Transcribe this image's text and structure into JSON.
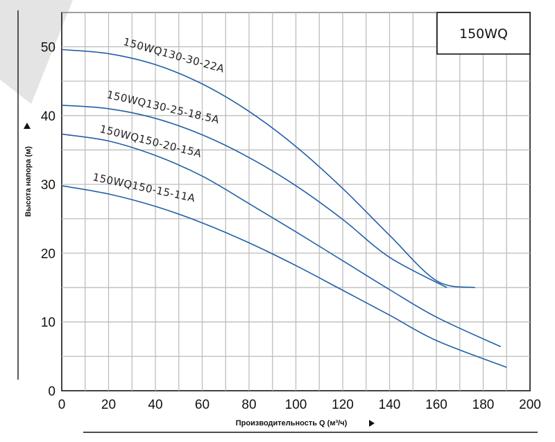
{
  "chart_data": {
    "type": "line",
    "title": "150WQ",
    "xlabel": "Производительность Q (м³/ч)",
    "ylabel": "Высота напора (м)",
    "xlim": [
      0,
      200
    ],
    "ylim": [
      0,
      55
    ],
    "xticks": [
      "0",
      "20",
      "40",
      "60",
      "80",
      "100",
      "120",
      "140",
      "160",
      "180",
      "200"
    ],
    "yticks": [
      "0",
      "10",
      "20",
      "30",
      "40",
      "50"
    ],
    "grid": true,
    "line_color": "#1f5fa8",
    "series": [
      {
        "name": "150WQ130-30-22A",
        "label_at": [
          26,
          50.3
        ],
        "label_angle": 15.5,
        "points": [
          [
            0,
            49.6
          ],
          [
            20,
            49.0
          ],
          [
            40,
            47.4
          ],
          [
            60,
            44.6
          ],
          [
            80,
            40.6
          ],
          [
            100,
            35.5
          ],
          [
            120,
            29.4
          ],
          [
            140,
            22.6
          ],
          [
            160,
            16.0
          ],
          [
            176.5,
            15.0
          ]
        ]
      },
      {
        "name": "150WQ130-25-18.5A",
        "label_at": [
          19,
          42.6
        ],
        "label_angle": 13,
        "points": [
          [
            0,
            41.5
          ],
          [
            20,
            41.0
          ],
          [
            40,
            39.6
          ],
          [
            60,
            37.2
          ],
          [
            80,
            33.9
          ],
          [
            100,
            29.8
          ],
          [
            120,
            24.9
          ],
          [
            140,
            19.4
          ],
          [
            164.5,
            15.0
          ]
        ]
      },
      {
        "name": "150WQ150-20-15A",
        "label_at": [
          16,
          37.6
        ],
        "label_angle": 14,
        "points": [
          [
            0,
            37.3
          ],
          [
            20,
            36.3
          ],
          [
            40,
            34.2
          ],
          [
            60,
            31.2
          ],
          [
            80,
            27.2
          ],
          [
            100,
            23.1
          ],
          [
            120,
            18.9
          ],
          [
            140,
            14.7
          ],
          [
            160,
            10.7
          ],
          [
            187.5,
            6.4
          ]
        ]
      },
      {
        "name": "150WQ150-15-11A",
        "label_at": [
          13,
          30.6
        ],
        "label_angle": 12,
        "points": [
          [
            0,
            29.8
          ],
          [
            20,
            28.6
          ],
          [
            40,
            26.8
          ],
          [
            60,
            24.4
          ],
          [
            80,
            21.5
          ],
          [
            100,
            18.2
          ],
          [
            120,
            14.6
          ],
          [
            140,
            11.0
          ],
          [
            160,
            7.3
          ],
          [
            190,
            3.4
          ]
        ]
      }
    ]
  }
}
